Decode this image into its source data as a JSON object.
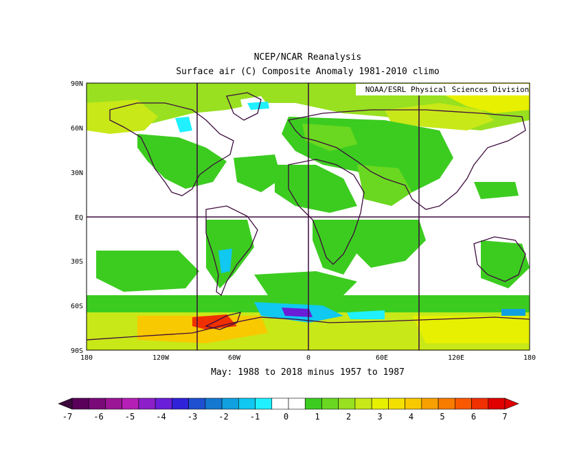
{
  "title": "NCEP/NCAR Reanalysis",
  "subtitle": "Surface air (C) Composite Anomaly 1981-2010 climo",
  "credit": "NOAA/ESRL Physical Sciences Division",
  "caption": "May: 1988 to 2018 minus 1957 to 1987",
  "map": {
    "lat_labels": [
      "90N",
      "60N",
      "30N",
      "EQ",
      "30S",
      "60S",
      "90S"
    ],
    "lon_labels": [
      "180",
      "120W",
      "60W",
      "0",
      "60E",
      "120E",
      "180"
    ],
    "grid_lines": [
      "90W",
      "0",
      "90E",
      "EQ"
    ]
  },
  "colorbar": {
    "labels": [
      "-7",
      "-6",
      "-5",
      "-4",
      "-3",
      "-2",
      "-1",
      "0",
      "1",
      "2",
      "3",
      "4",
      "5",
      "6",
      "7"
    ],
    "colors": [
      "#5a005a",
      "#7a0a78",
      "#9a1696",
      "#b51fb5",
      "#8c1fc8",
      "#6a1ed8",
      "#3022d8",
      "#1e50d0",
      "#1478d0",
      "#10a0e0",
      "#10c8f0",
      "#20f0ff",
      "#ffffff",
      "#ffffff",
      "#3ccc20",
      "#6ad820",
      "#98e020",
      "#c8e818",
      "#e6f000",
      "#f4e000",
      "#f8c800",
      "#f8a000",
      "#f87c00",
      "#f85800",
      "#f03000",
      "#e00000"
    ],
    "left_arrow_color": "#3c0a3c",
    "right_arrow_color": "#e00000"
  }
}
